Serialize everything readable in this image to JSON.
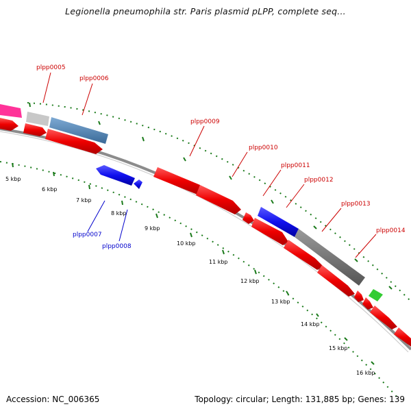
{
  "title": "Legionella pneumophila str. Paris plasmid pLPP, complete seq...",
  "footer": {
    "accession": "Accession: NC_006365",
    "summary": "Topology: circular; Length: 131,885 bp; Genes: 139"
  },
  "colors": {
    "backbone": "#8c8c8c",
    "tick_green": "#1a7a1a",
    "gene_red": "#ee0000",
    "label_red": "#cc0000",
    "label_blue": "#0000cc",
    "magenta": "#ff3399",
    "light_gray": "#c8c8c8",
    "steel_blue": "#4a7fb0",
    "blue": "#1010ee",
    "dark_gray": "#707070",
    "green": "#33cc33"
  },
  "scale_labels": [
    "5 kbp",
    "6 kbp",
    "7 kbp",
    "8 kbp",
    "9 kbp",
    "10 kbp",
    "11 kbp",
    "12 kbp",
    "13 kbp",
    "14 kbp",
    "15 kbp",
    "16 kbp"
  ],
  "gene_labels": [
    {
      "name": "plpp0005",
      "color": "red"
    },
    {
      "name": "plpp0006",
      "color": "red"
    },
    {
      "name": "plpp0007",
      "color": "blue"
    },
    {
      "name": "plpp0008",
      "color": "blue"
    },
    {
      "name": "plpp0009",
      "color": "red"
    },
    {
      "name": "plpp0010",
      "color": "red"
    },
    {
      "name": "plpp0011",
      "color": "red"
    },
    {
      "name": "plpp0012",
      "color": "red"
    },
    {
      "name": "plpp0013",
      "color": "red"
    },
    {
      "name": "plpp0014",
      "color": "red"
    }
  ]
}
